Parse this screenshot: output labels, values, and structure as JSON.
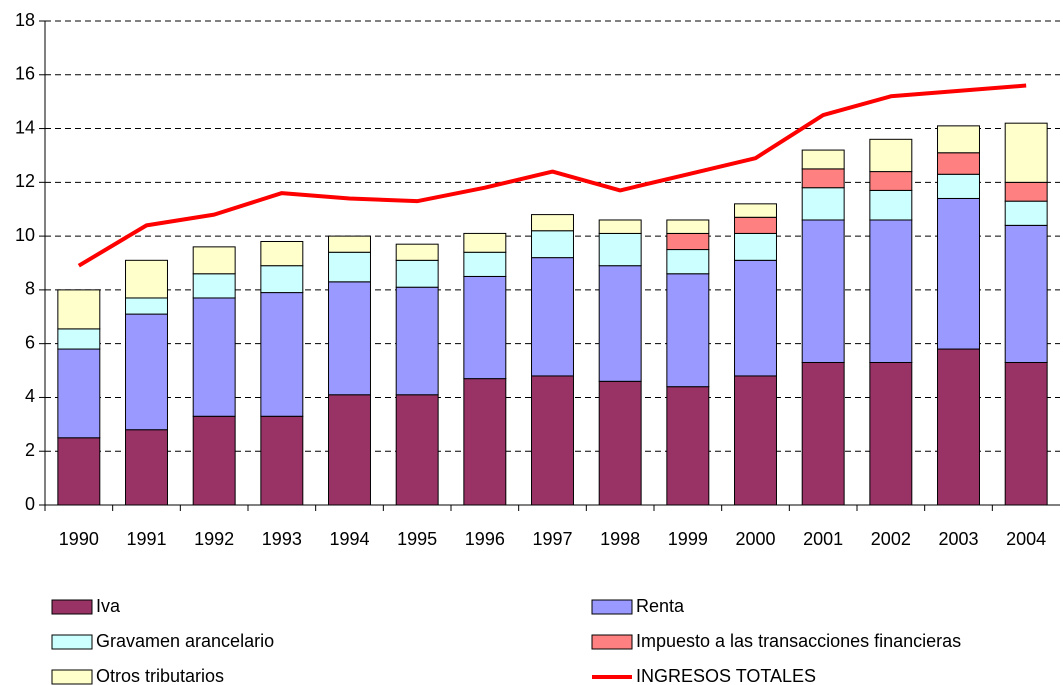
{
  "chart_data": {
    "type": "bar",
    "stacked": true,
    "categories": [
      "1990",
      "1991",
      "1992",
      "1993",
      "1994",
      "1995",
      "1996",
      "1997",
      "1998",
      "1999",
      "2000",
      "2001",
      "2002",
      "2003",
      "2004"
    ],
    "series": [
      {
        "name": "Iva",
        "color": "#993366",
        "values": [
          2.5,
          2.8,
          3.3,
          3.3,
          4.1,
          4.1,
          4.7,
          4.8,
          4.6,
          4.4,
          4.8,
          5.3,
          5.3,
          5.8,
          5.3
        ]
      },
      {
        "name": "Renta",
        "color": "#9999ff",
        "values": [
          3.3,
          4.3,
          4.4,
          4.6,
          4.2,
          4.0,
          3.8,
          4.4,
          4.3,
          4.2,
          4.3,
          5.3,
          5.3,
          5.6,
          5.1
        ]
      },
      {
        "name": "Gravamen arancelario",
        "color": "#ccffff",
        "values": [
          0.75,
          0.6,
          0.9,
          1.0,
          1.1,
          1.0,
          0.9,
          1.0,
          1.2,
          0.9,
          1.0,
          1.2,
          1.1,
          0.9,
          0.9
        ]
      },
      {
        "name": "Impuesto a las transacciones financieras",
        "color": "#ff8080",
        "values": [
          0,
          0,
          0,
          0,
          0,
          0,
          0,
          0,
          0,
          0.6,
          0.6,
          0.7,
          0.7,
          0.8,
          0.7
        ]
      },
      {
        "name": "Otros tributarios",
        "color": "#ffffcc",
        "values": [
          1.45,
          1.4,
          1.0,
          0.9,
          0.6,
          0.6,
          0.7,
          0.6,
          0.5,
          0.5,
          0.5,
          0.7,
          1.2,
          1.0,
          2.2
        ]
      },
      {
        "name": "INGRESOS TOTALES",
        "color": "#ff0000",
        "type": "line",
        "values": [
          8.9,
          10.4,
          10.8,
          11.6,
          11.4,
          11.3,
          11.8,
          12.4,
          11.7,
          12.3,
          12.9,
          14.5,
          15.2,
          15.4,
          15.6
        ]
      }
    ],
    "ylim": [
      0,
      18
    ],
    "yticks": [
      0,
      2,
      4,
      6,
      8,
      10,
      12,
      14,
      16,
      18
    ],
    "grid": true
  }
}
